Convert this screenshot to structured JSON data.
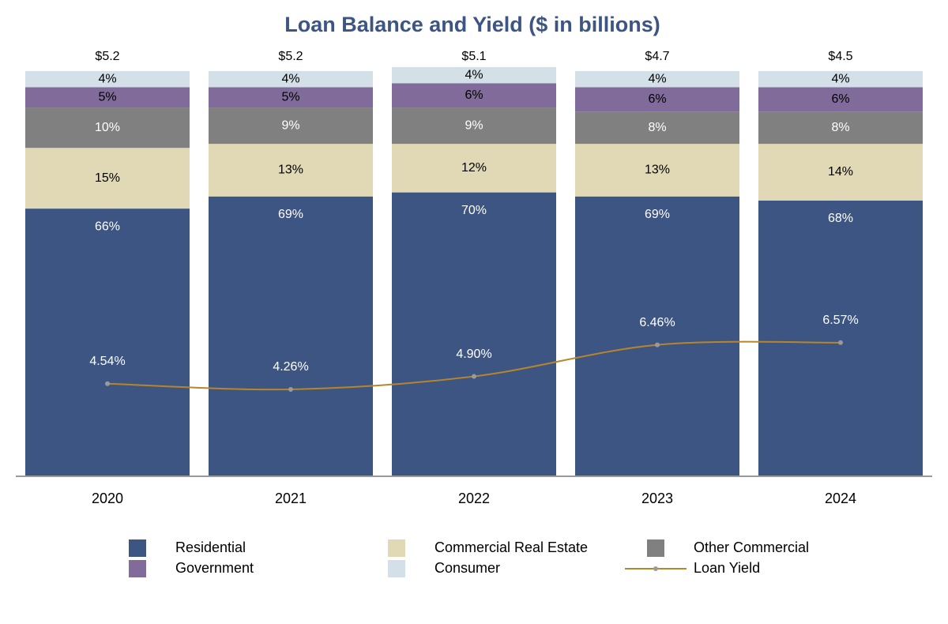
{
  "chart_data": {
    "type": "bar",
    "stacked": true,
    "title": "Loan Balance and Yield ($ in billions)",
    "categories": [
      "2020",
      "2021",
      "2022",
      "2023",
      "2024"
    ],
    "ylim": [
      0,
      100
    ],
    "y2lim": [
      0,
      20
    ],
    "series": [
      {
        "name": "Residential",
        "color": "#3d5583",
        "label_color": "#ffffff",
        "values": [
          66,
          69,
          70,
          69,
          68
        ],
        "value_labels": [
          "66%",
          "69%",
          "70%",
          "69%",
          "68%"
        ]
      },
      {
        "name": "Commercial Real Estate",
        "color": "#e1d9b6",
        "label_color": "#000000",
        "values": [
          15,
          13,
          12,
          13,
          14
        ],
        "value_labels": [
          "15%",
          "13%",
          "12%",
          "13%",
          "14%"
        ]
      },
      {
        "name": "Other Commercial",
        "color": "#808080",
        "label_color": "#ffffff",
        "values": [
          10,
          9,
          9,
          8,
          8
        ],
        "value_labels": [
          "10%",
          "9%",
          "9%",
          "8%",
          "8%"
        ]
      },
      {
        "name": "Government",
        "color": "#806b9b",
        "label_color": "#000000",
        "values": [
          5,
          5,
          6,
          6,
          6
        ],
        "value_labels": [
          "5%",
          "5%",
          "6%",
          "6%",
          "6%"
        ]
      },
      {
        "name": "Consumer",
        "color": "#d3e0e8",
        "label_color": "#000000",
        "values": [
          4,
          4,
          4,
          4,
          4
        ],
        "value_labels": [
          "4%",
          "4%",
          "4%",
          "4%",
          "4%"
        ]
      },
      {
        "name": "Loan Yield",
        "type": "line",
        "axis": "y2",
        "color": "#b8862a",
        "marker_color": "#9a9a9a",
        "label_color": "#ffffff",
        "values": [
          4.54,
          4.26,
          4.9,
          6.46,
          6.57
        ],
        "value_labels": [
          "4.54%",
          "4.26%",
          "4.90%",
          "6.46%",
          "6.57%"
        ]
      }
    ],
    "totals": {
      "values": [
        5.2,
        5.2,
        5.1,
        4.7,
        4.5
      ],
      "value_labels": [
        "$5.2",
        "$5.2",
        "$5.1",
        "$4.7",
        "$4.5"
      ]
    }
  }
}
